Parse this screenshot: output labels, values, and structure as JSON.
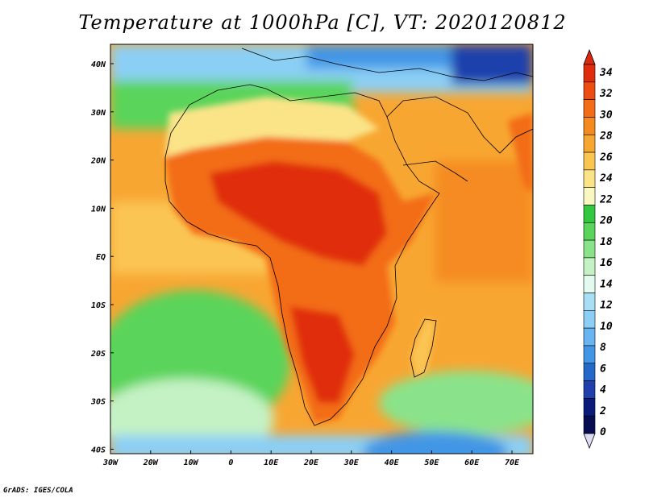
{
  "title": "Temperature at 1000hPa [C], VT: 2020120812",
  "credit": "GrADS: IGES/COLA",
  "map": {
    "lat_ticks": [
      "40N",
      "30N",
      "20N",
      "10N",
      "EQ",
      "10S",
      "20S",
      "30S",
      "40S"
    ],
    "lon_ticks": [
      "30W",
      "20W",
      "10W",
      "0",
      "10E",
      "20E",
      "30E",
      "40E",
      "50E",
      "60E",
      "70E"
    ]
  },
  "colorbar": {
    "labels": [
      "34",
      "32",
      "30",
      "28",
      "26",
      "24",
      "22",
      "20",
      "18",
      "16",
      "14",
      "12",
      "10",
      "8",
      "6",
      "4",
      "2",
      "0"
    ],
    "colors": [
      "#e02d0e",
      "#ee4d12",
      "#f36c16",
      "#f58b20",
      "#f8a632",
      "#fbc552",
      "#fbe488",
      "#fbf7c0",
      "#34c840",
      "#5ad45a",
      "#8ae38a",
      "#c4f2c4",
      "#e3fbef",
      "#a9dff6",
      "#8bcff5",
      "#68b5f2",
      "#4296e6",
      "#2469ca",
      "#1f3fac",
      "#0c1a7a",
      "#080d52"
    ],
    "top_color": "#d9280e",
    "bottom_color": "#dcdcf4"
  }
}
